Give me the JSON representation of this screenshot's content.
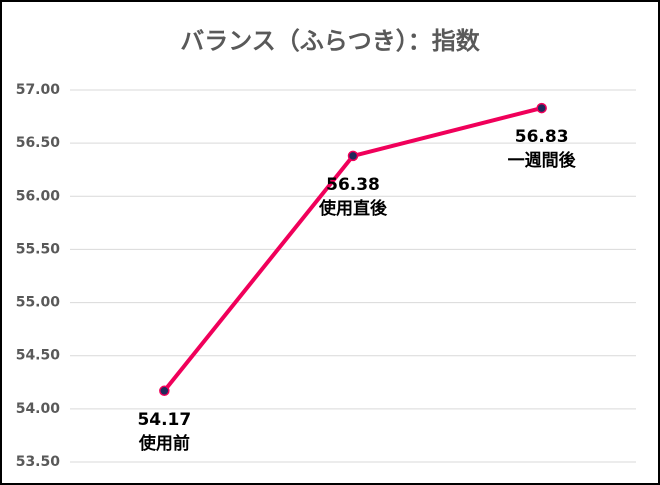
{
  "chart_data": {
    "type": "line",
    "title": "バランス（ふらつき）：指数",
    "categories": [
      "使用前",
      "使用直後",
      "一週間後"
    ],
    "series": [
      {
        "name": "指数",
        "color": "#f0005a",
        "values": [
          54.17,
          56.38,
          56.83
        ]
      }
    ],
    "ylim": [
      53.5,
      57.0
    ],
    "yticks": [
      {
        "value": 53.5,
        "label": "53.50"
      },
      {
        "value": 54.0,
        "label": "54.00"
      },
      {
        "value": 54.5,
        "label": "54.50"
      },
      {
        "value": 55.0,
        "label": "55.00"
      },
      {
        "value": 55.5,
        "label": "55.50"
      },
      {
        "value": 56.0,
        "label": "56.00"
      },
      {
        "value": 56.5,
        "label": "56.50"
      },
      {
        "value": 57.0,
        "label": "57.00"
      }
    ],
    "grid": true
  }
}
